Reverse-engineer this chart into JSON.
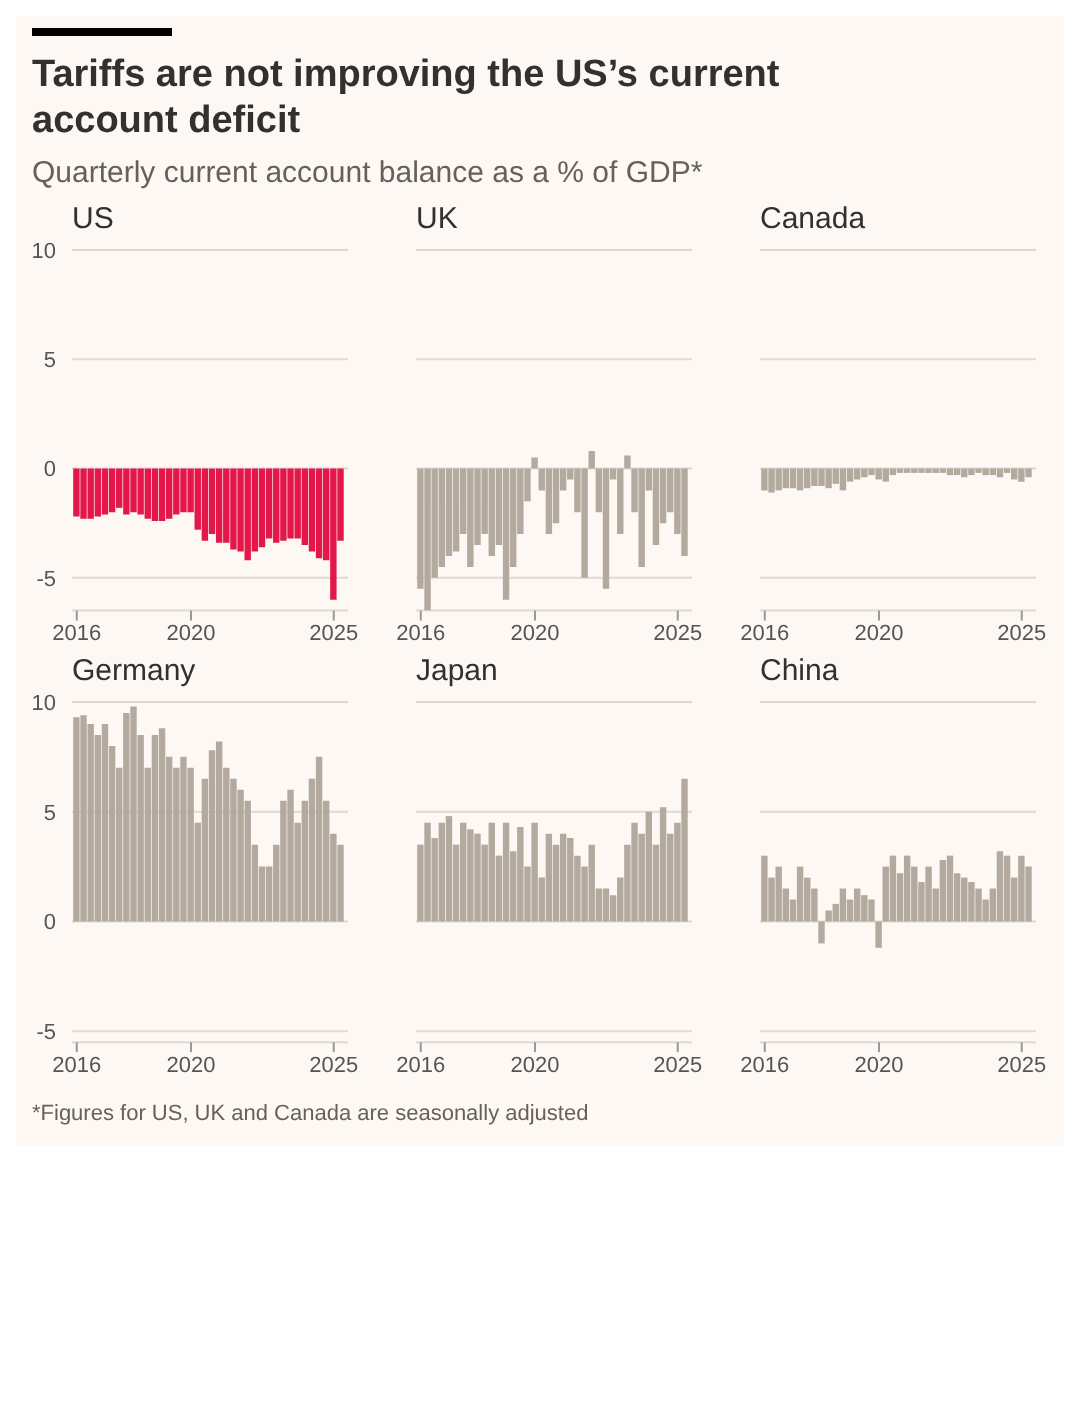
{
  "chart_data": [
    {
      "type": "bar",
      "title": "Tariffs are not improving the US’s current account deficit",
      "subtitle": "Quarterly current account balance as a % of GDP*",
      "x": [
        "2016-01",
        "2016-04",
        "2016-07",
        "2016-10",
        "2017-01",
        "2017-04",
        "2017-07",
        "2017-10",
        "2018-01",
        "2018-04",
        "2018-07",
        "2018-10",
        "2019-01",
        "2019-04",
        "2019-07",
        "2019-10",
        "2020-01",
        "2020-04",
        "2020-07",
        "2020-10",
        "2021-01",
        "2021-04",
        "2021-07",
        "2021-10",
        "2022-01",
        "2022-04",
        "2022-07",
        "2022-10",
        "2023-01",
        "2023-04",
        "2023-07",
        "2023-10",
        "2024-01",
        "2024-04",
        "2024-07",
        "2024-10",
        "2025-01",
        "2025-04"
      ],
      "xlim": [
        "2015-11",
        "2025-07"
      ],
      "xticks": [
        {
          "value": "2016",
          "label": "2016"
        },
        {
          "value": "2020",
          "label": "2020"
        },
        {
          "value": "2025",
          "label": "2025"
        }
      ],
      "ylim": [
        -6.5,
        10
      ],
      "yticks": [
        -5,
        0,
        5,
        10
      ],
      "grid": "y",
      "series": [
        {
          "name": "US",
          "color": "#e3174a",
          "values": [
            -2.2,
            -2.3,
            -2.3,
            -2.2,
            -2.1,
            -2.0,
            -1.8,
            -2.1,
            -2.0,
            -2.1,
            -2.3,
            -2.4,
            -2.4,
            -2.3,
            -2.1,
            -2.0,
            -2.0,
            -2.8,
            -3.3,
            -3.0,
            -3.4,
            -3.4,
            -3.7,
            -3.8,
            -4.2,
            -3.8,
            -3.6,
            -3.2,
            -3.4,
            -3.3,
            -3.2,
            -3.2,
            -3.5,
            -3.8,
            -4.1,
            -4.2,
            -6.0,
            -3.3
          ]
        }
      ]
    },
    {
      "type": "bar",
      "x": [
        "2016-01",
        "2016-04",
        "2016-07",
        "2016-10",
        "2017-01",
        "2017-04",
        "2017-07",
        "2017-10",
        "2018-01",
        "2018-04",
        "2018-07",
        "2018-10",
        "2019-01",
        "2019-04",
        "2019-07",
        "2019-10",
        "2020-01",
        "2020-04",
        "2020-07",
        "2020-10",
        "2021-01",
        "2021-04",
        "2021-07",
        "2021-10",
        "2022-01",
        "2022-04",
        "2022-07",
        "2022-10",
        "2023-01",
        "2023-04",
        "2023-07",
        "2023-10",
        "2024-01",
        "2024-04",
        "2024-07",
        "2024-10",
        "2025-01",
        "2025-04"
      ],
      "xlim": [
        "2015-11",
        "2025-07"
      ],
      "xticks": [
        {
          "value": "2016",
          "label": "2016"
        },
        {
          "value": "2020",
          "label": "2020"
        },
        {
          "value": "2025",
          "label": "2025"
        }
      ],
      "ylim": [
        -6.5,
        10
      ],
      "yticks": [
        -5,
        0,
        5,
        10
      ],
      "grid": "y",
      "tick_labels": "x",
      "series": [
        {
          "name": "UK",
          "color": "#b3a99f",
          "values": [
            -5.5,
            -6.5,
            -5.0,
            -4.5,
            -4.0,
            -3.8,
            -3.0,
            -4.5,
            -3.5,
            -3.0,
            -4.0,
            -3.5,
            -6.0,
            -4.5,
            -3.0,
            -1.5,
            0.5,
            -1.0,
            -3.0,
            -2.5,
            -1.0,
            -0.5,
            -2.0,
            -5.0,
            0.8,
            -2.0,
            -5.5,
            -0.5,
            -3.0,
            0.6,
            -2.0,
            -4.5,
            -1.0,
            -3.5,
            -2.5,
            -2.0,
            -3.0,
            -4.0
          ]
        }
      ]
    },
    {
      "type": "bar",
      "x": [
        "2016-01",
        "2016-04",
        "2016-07",
        "2016-10",
        "2017-01",
        "2017-04",
        "2017-07",
        "2017-10",
        "2018-01",
        "2018-04",
        "2018-07",
        "2018-10",
        "2019-01",
        "2019-04",
        "2019-07",
        "2019-10",
        "2020-01",
        "2020-04",
        "2020-07",
        "2020-10",
        "2021-01",
        "2021-04",
        "2021-07",
        "2021-10",
        "2022-01",
        "2022-04",
        "2022-07",
        "2022-10",
        "2023-01",
        "2023-04",
        "2023-07",
        "2023-10",
        "2024-01",
        "2024-04",
        "2024-07",
        "2024-10",
        "2025-01",
        "2025-04"
      ],
      "xlim": [
        "2015-11",
        "2025-07"
      ],
      "xticks": [
        {
          "value": "2016",
          "label": "2016"
        },
        {
          "value": "2020",
          "label": "2020"
        },
        {
          "value": "2025",
          "label": "2025"
        }
      ],
      "ylim": [
        -6.5,
        10
      ],
      "yticks": [
        -5,
        0,
        5,
        10
      ],
      "grid": "y",
      "tick_labels": "x",
      "series": [
        {
          "name": "Canada",
          "color": "#b3a99f",
          "values": [
            -1.0,
            -1.1,
            -1.0,
            -0.9,
            -0.9,
            -1.0,
            -0.9,
            -0.8,
            -0.8,
            -0.9,
            -0.7,
            -1.0,
            -0.6,
            -0.5,
            -0.4,
            -0.3,
            -0.5,
            -0.6,
            -0.3,
            -0.2,
            -0.2,
            -0.2,
            -0.2,
            -0.2,
            -0.2,
            -0.2,
            -0.3,
            -0.3,
            -0.4,
            -0.3,
            -0.2,
            -0.3,
            -0.3,
            -0.4,
            -0.2,
            -0.5,
            -0.6,
            -0.4
          ]
        }
      ]
    },
    {
      "type": "bar",
      "x": [
        "2016-01",
        "2016-04",
        "2016-07",
        "2016-10",
        "2017-01",
        "2017-04",
        "2017-07",
        "2017-10",
        "2018-01",
        "2018-04",
        "2018-07",
        "2018-10",
        "2019-01",
        "2019-04",
        "2019-07",
        "2019-10",
        "2020-01",
        "2020-04",
        "2020-07",
        "2020-10",
        "2021-01",
        "2021-04",
        "2021-07",
        "2021-10",
        "2022-01",
        "2022-04",
        "2022-07",
        "2022-10",
        "2023-01",
        "2023-04",
        "2023-07",
        "2023-10",
        "2024-01",
        "2024-04",
        "2024-07",
        "2024-10",
        "2025-01",
        "2025-04"
      ],
      "xlim": [
        "2015-11",
        "2025-07"
      ],
      "xticks": [
        {
          "value": "2016",
          "label": "2016"
        },
        {
          "value": "2020",
          "label": "2020"
        },
        {
          "value": "2025",
          "label": "2025"
        }
      ],
      "ylim": [
        -5.5,
        10
      ],
      "yticks": [
        -5,
        0,
        5,
        10
      ],
      "grid": "y",
      "series": [
        {
          "name": "Germany",
          "color": "#b3a99f",
          "values": [
            9.3,
            9.4,
            9.0,
            8.5,
            9.0,
            8.0,
            7.0,
            9.5,
            9.8,
            8.5,
            7.0,
            8.5,
            8.8,
            7.5,
            7.0,
            7.5,
            7.0,
            4.5,
            6.5,
            7.8,
            8.2,
            7.0,
            6.5,
            6.0,
            5.5,
            3.5,
            2.5,
            2.5,
            3.5,
            5.5,
            6.0,
            4.5,
            5.5,
            6.5,
            7.5,
            5.5,
            4.0,
            3.5
          ]
        }
      ]
    },
    {
      "type": "bar",
      "x": [
        "2016-01",
        "2016-04",
        "2016-07",
        "2016-10",
        "2017-01",
        "2017-04",
        "2017-07",
        "2017-10",
        "2018-01",
        "2018-04",
        "2018-07",
        "2018-10",
        "2019-01",
        "2019-04",
        "2019-07",
        "2019-10",
        "2020-01",
        "2020-04",
        "2020-07",
        "2020-10",
        "2021-01",
        "2021-04",
        "2021-07",
        "2021-10",
        "2022-01",
        "2022-04",
        "2022-07",
        "2022-10",
        "2023-01",
        "2023-04",
        "2023-07",
        "2023-10",
        "2024-01",
        "2024-04",
        "2024-07",
        "2024-10",
        "2025-01",
        "2025-04"
      ],
      "xlim": [
        "2015-11",
        "2025-07"
      ],
      "xticks": [
        {
          "value": "2016",
          "label": "2016"
        },
        {
          "value": "2020",
          "label": "2020"
        },
        {
          "value": "2025",
          "label": "2025"
        }
      ],
      "ylim": [
        -5.5,
        10
      ],
      "yticks": [
        -5,
        0,
        5,
        10
      ],
      "grid": "y",
      "tick_labels": "x",
      "series": [
        {
          "name": "Japan",
          "color": "#b3a99f",
          "values": [
            3.5,
            4.5,
            3.8,
            4.5,
            4.8,
            3.5,
            4.5,
            4.2,
            4.0,
            3.5,
            4.5,
            3.0,
            4.5,
            3.2,
            4.3,
            2.5,
            4.5,
            2.0,
            4.0,
            3.5,
            4.0,
            3.8,
            3.0,
            2.5,
            3.5,
            1.5,
            1.5,
            1.2,
            2.0,
            3.5,
            4.5,
            4.0,
            5.0,
            3.5,
            5.2,
            4.0,
            4.5,
            6.5
          ]
        }
      ]
    },
    {
      "type": "bar",
      "annotations": [
        "*Figures for US, UK and Canada are seasonally adjusted"
      ],
      "x": [
        "2016-01",
        "2016-04",
        "2016-07",
        "2016-10",
        "2017-01",
        "2017-04",
        "2017-07",
        "2017-10",
        "2018-01",
        "2018-04",
        "2018-07",
        "2018-10",
        "2019-01",
        "2019-04",
        "2019-07",
        "2019-10",
        "2020-01",
        "2020-04",
        "2020-07",
        "2020-10",
        "2021-01",
        "2021-04",
        "2021-07",
        "2021-10",
        "2022-01",
        "2022-04",
        "2022-07",
        "2022-10",
        "2023-01",
        "2023-04",
        "2023-07",
        "2023-10",
        "2024-01",
        "2024-04",
        "2024-07",
        "2024-10",
        "2025-01",
        "2025-04"
      ],
      "xlim": [
        "2015-11",
        "2025-07"
      ],
      "xticks": [
        {
          "value": "2016",
          "label": "2016"
        },
        {
          "value": "2020",
          "label": "2020"
        },
        {
          "value": "2025",
          "label": "2025"
        }
      ],
      "ylim": [
        -5.5,
        10
      ],
      "yticks": [
        -5,
        0,
        5,
        10
      ],
      "grid": "y",
      "tick_labels": "x",
      "series": [
        {
          "name": "China",
          "color": "#b3a99f",
          "values": [
            3.0,
            2.0,
            2.5,
            1.5,
            1.0,
            2.5,
            2.0,
            1.5,
            -1.0,
            0.5,
            0.8,
            1.5,
            1.0,
            1.5,
            1.2,
            1.0,
            -1.2,
            2.5,
            3.0,
            2.2,
            3.0,
            2.5,
            1.8,
            2.5,
            1.5,
            2.8,
            3.0,
            2.2,
            2.0,
            1.8,
            1.5,
            1.0,
            1.5,
            3.2,
            3.0,
            2.0,
            3.0,
            2.5
          ]
        }
      ]
    }
  ]
}
